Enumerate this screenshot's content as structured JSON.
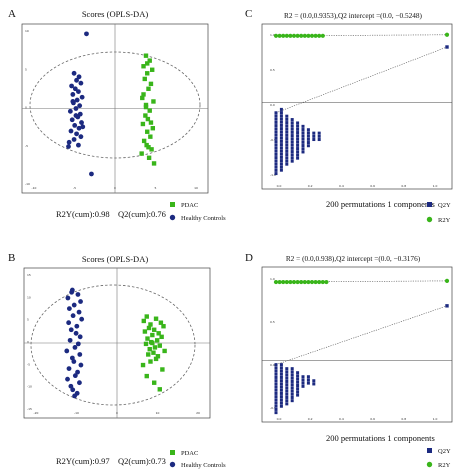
{
  "colors": {
    "green": "#39b51a",
    "blue": "#1c2a80",
    "grid": "#777777",
    "ellipse": "#666666"
  },
  "panels": {
    "A": {
      "letter": "A",
      "title": "Scores (OPLS-DA)",
      "stats_left": "R2Y(cum):0.98",
      "stats_right": "Q2(cum):0.76",
      "legend": [
        "PDAC",
        "Healthy Controls"
      ],
      "yticks": [
        "10",
        "5",
        "0",
        "-5",
        "-10"
      ],
      "xticks": [
        "-10",
        "-5",
        "0",
        "5",
        "10"
      ]
    },
    "B": {
      "letter": "B",
      "title": "Scores (OPLS-DA)",
      "stats_left": "R2Y(cum):0.97",
      "stats_right": "Q2(cum):0.73",
      "legend": [
        "PDAC",
        "Healthy Controls"
      ],
      "yticks": [
        "15",
        "10",
        "5",
        "0",
        "-5",
        "-10",
        "-15"
      ],
      "xticks": [
        "-20",
        "-10",
        "0",
        "10",
        "20"
      ]
    },
    "C": {
      "letter": "C",
      "title": "R2 = (0.0,0.9353),Q2 intercept =(0.0, −0.5248)",
      "footer": "200 permutations 1 components",
      "legend": [
        "Q2Y",
        "R2Y"
      ],
      "yticks": [
        "1.0",
        "0.5",
        "0.0",
        "-0.5",
        "-1.0"
      ],
      "xticks": [
        "0.0",
        "0.2",
        "0.4",
        "0.6",
        "0.8",
        "1.0"
      ]
    },
    "D": {
      "letter": "D",
      "title": "R2 = (0.0,0.938),Q2 intercept =(0.0, −0.3176)",
      "footer": "200 permutations 1 components",
      "legend": [
        "Q2Y",
        "R2Y"
      ],
      "yticks": [
        "1.0",
        "0.5",
        "0.0",
        "-0.5"
      ],
      "xticks": [
        "0.0",
        "0.2",
        "0.4",
        "0.6",
        "0.8",
        "1.0"
      ]
    }
  },
  "chart_data": [
    {
      "type": "scatter",
      "panel": "A",
      "title": "Scores (OPLS-DA)",
      "xlim": [
        -15,
        15
      ],
      "ylim": [
        -12,
        12
      ],
      "series": [
        {
          "name": "PDAC",
          "color": "#39b51a",
          "x": [
            5.0,
            5.6,
            4.6,
            6.0,
            5.2,
            4.8,
            5.8,
            5.4,
            4.4,
            6.2,
            5.0,
            5.6,
            4.9,
            5.3,
            4.5,
            6.1,
            5.2,
            5.7,
            4.7,
            5.1,
            5.9,
            4.3,
            5.5,
            6.3,
            5.0,
            5.8,
            4.6,
            5.4,
            5.2
          ],
          "y": [
            7.5,
            6.8,
            6.0,
            5.5,
            5.0,
            4.2,
            3.5,
            2.8,
            1.5,
            1.0,
            0.5,
            -0.3,
            -1.0,
            -1.5,
            -2.2,
            -2.8,
            -3.3,
            -4.0,
            -4.6,
            -5.2,
            -5.8,
            -6.4,
            -7.0,
            -7.8,
            0.2,
            -2.0,
            2.0,
            -5.5,
            6.4
          ]
        },
        {
          "name": "Healthy Controls",
          "color": "#1c2a80",
          "x": [
            -6.6,
            -5.8,
            -6.2,
            -5.5,
            -7.0,
            -6.4,
            -5.9,
            -6.8,
            -5.3,
            -6.1,
            -6.7,
            -5.7,
            -6.3,
            -7.2,
            -5.6,
            -6.0,
            -6.9,
            -5.4,
            -6.5,
            -5.8,
            -7.1,
            -6.2,
            -5.5,
            -6.6,
            -7.4,
            -5.9,
            -6.3,
            -6.8,
            -5.2,
            -7.5,
            -4.6,
            -3.8
          ],
          "y": [
            5.0,
            4.5,
            4.0,
            3.6,
            3.2,
            2.8,
            2.4,
            2.0,
            1.6,
            1.2,
            0.8,
            0.4,
            0.0,
            -0.4,
            -0.8,
            -1.2,
            -1.6,
            -2.0,
            -2.4,
            -2.8,
            -3.2,
            -3.6,
            -4.0,
            -4.4,
            -4.8,
            -5.2,
            -1.0,
            1.0,
            -2.6,
            -5.4,
            10.6,
            -9.3
          ]
        }
      ]
    },
    {
      "type": "scatter",
      "panel": "B",
      "title": "Scores (OPLS-DA)",
      "xlim": [
        -25,
        25
      ],
      "ylim": [
        -17,
        17
      ],
      "series": [
        {
          "name": "PDAC",
          "color": "#39b51a",
          "x": [
            8.0,
            10.5,
            7.2,
            11.8,
            9.0,
            12.5,
            8.6,
            10.0,
            7.5,
            11.2,
            9.5,
            12.0,
            8.2,
            10.8,
            9.2,
            7.8,
            11.5,
            10.2,
            8.8,
            12.8,
            9.8,
            8.4,
            11.0,
            10.5,
            9.0,
            7.0,
            12.2,
            8.0,
            10.0,
            11.5,
            9.5
          ],
          "y": [
            6.0,
            5.5,
            5.0,
            4.6,
            4.2,
            3.8,
            3.4,
            3.0,
            2.6,
            2.2,
            1.8,
            1.4,
            1.0,
            0.6,
            0.2,
            -0.2,
            -0.6,
            -1.0,
            -1.4,
            -1.8,
            -2.2,
            -2.6,
            -3.0,
            -3.6,
            -4.2,
            -5.0,
            -6.0,
            -7.5,
            -9.0,
            -10.5,
            0.0
          ]
        },
        {
          "name": "Healthy Controls",
          "color": "#1c2a80",
          "x": [
            -12.0,
            -10.5,
            -13.2,
            -9.8,
            -11.5,
            -12.8,
            -10.2,
            -11.8,
            -9.5,
            -13.0,
            -10.8,
            -12.3,
            -11.0,
            -9.9,
            -12.6,
            -10.4,
            -11.3,
            -13.5,
            -10.0,
            -12.0,
            -11.6,
            -9.7,
            -12.9,
            -10.6,
            -11.2,
            -13.3,
            -10.1,
            -12.4,
            -11.9,
            -10.7,
            -12.2,
            -11.4
          ],
          "y": [
            12.0,
            11.0,
            10.2,
            9.4,
            8.6,
            7.8,
            7.0,
            6.2,
            5.4,
            4.6,
            3.8,
            3.0,
            2.2,
            1.4,
            0.6,
            -0.2,
            -1.0,
            -1.8,
            -2.6,
            -3.4,
            -4.2,
            -5.0,
            -5.8,
            -6.6,
            -7.4,
            -8.2,
            -9.0,
            -9.8,
            -10.6,
            -11.4,
            11.5,
            -12.0
          ]
        }
      ]
    },
    {
      "type": "scatter",
      "panel": "C",
      "title": "R2 = (0.0,0.9353),Q2 intercept =(0.0, −0.5248)",
      "xlim": [
        0,
        1
      ],
      "ylim": [
        -1.2,
        1.1
      ],
      "series": [
        {
          "name": "R2Y",
          "color": "#39b51a",
          "x": [
            0.05,
            0.07,
            0.09,
            0.11,
            0.13,
            0.15,
            0.17,
            0.19,
            0.21,
            0.23,
            0.25,
            0.27,
            0.29,
            0.31,
            1.0
          ],
          "y": [
            0.985,
            0.985,
            0.985,
            0.985,
            0.985,
            0.985,
            0.985,
            0.985,
            0.985,
            0.985,
            0.985,
            0.985,
            0.985,
            0.985,
            1.0
          ]
        },
        {
          "name": "Q2Y",
          "color": "#1c2a80",
          "cols": [
            [
              0.05,
              -0.15,
              -1.05
            ],
            [
              0.08,
              -0.1,
              -1.0
            ],
            [
              0.11,
              -0.2,
              -0.95
            ],
            [
              0.14,
              -0.25,
              -0.9
            ],
            [
              0.17,
              -0.3,
              -0.85
            ],
            [
              0.2,
              -0.35,
              -0.75
            ],
            [
              0.23,
              -0.4,
              -0.65
            ],
            [
              0.26,
              -0.45,
              -0.55
            ],
            [
              0.29,
              -0.45,
              -0.55
            ]
          ],
          "x": [
            1.0
          ],
          "y": [
            0.82
          ]
        }
      ]
    },
    {
      "type": "scatter",
      "panel": "D",
      "title": "R2 = (0.0,0.938),Q2 intercept =(0.0, −0.3176)",
      "xlim": [
        0,
        1
      ],
      "ylim": [
        -0.7,
        1.1
      ],
      "series": [
        {
          "name": "R2Y",
          "color": "#39b51a",
          "x": [
            0.05,
            0.07,
            0.09,
            0.11,
            0.13,
            0.15,
            0.17,
            0.19,
            0.21,
            0.23,
            0.25,
            0.27,
            0.29,
            0.31,
            0.33,
            1.0
          ],
          "y": [
            0.975,
            0.975,
            0.975,
            0.975,
            0.975,
            0.975,
            0.975,
            0.975,
            0.975,
            0.975,
            0.975,
            0.975,
            0.975,
            0.975,
            0.975,
            0.99
          ]
        },
        {
          "name": "Q2Y",
          "color": "#1c2a80",
          "cols": [
            [
              0.05,
              -0.05,
              -0.65
            ],
            [
              0.08,
              -0.05,
              -0.6
            ],
            [
              0.11,
              -0.1,
              -0.55
            ],
            [
              0.14,
              -0.1,
              -0.5
            ],
            [
              0.17,
              -0.15,
              -0.45
            ],
            [
              0.2,
              -0.2,
              -0.35
            ],
            [
              0.23,
              -0.2,
              -0.3
            ],
            [
              0.26,
              -0.25,
              -0.3
            ]
          ],
          "x": [
            1.0
          ],
          "y": [
            0.68
          ]
        }
      ]
    }
  ]
}
